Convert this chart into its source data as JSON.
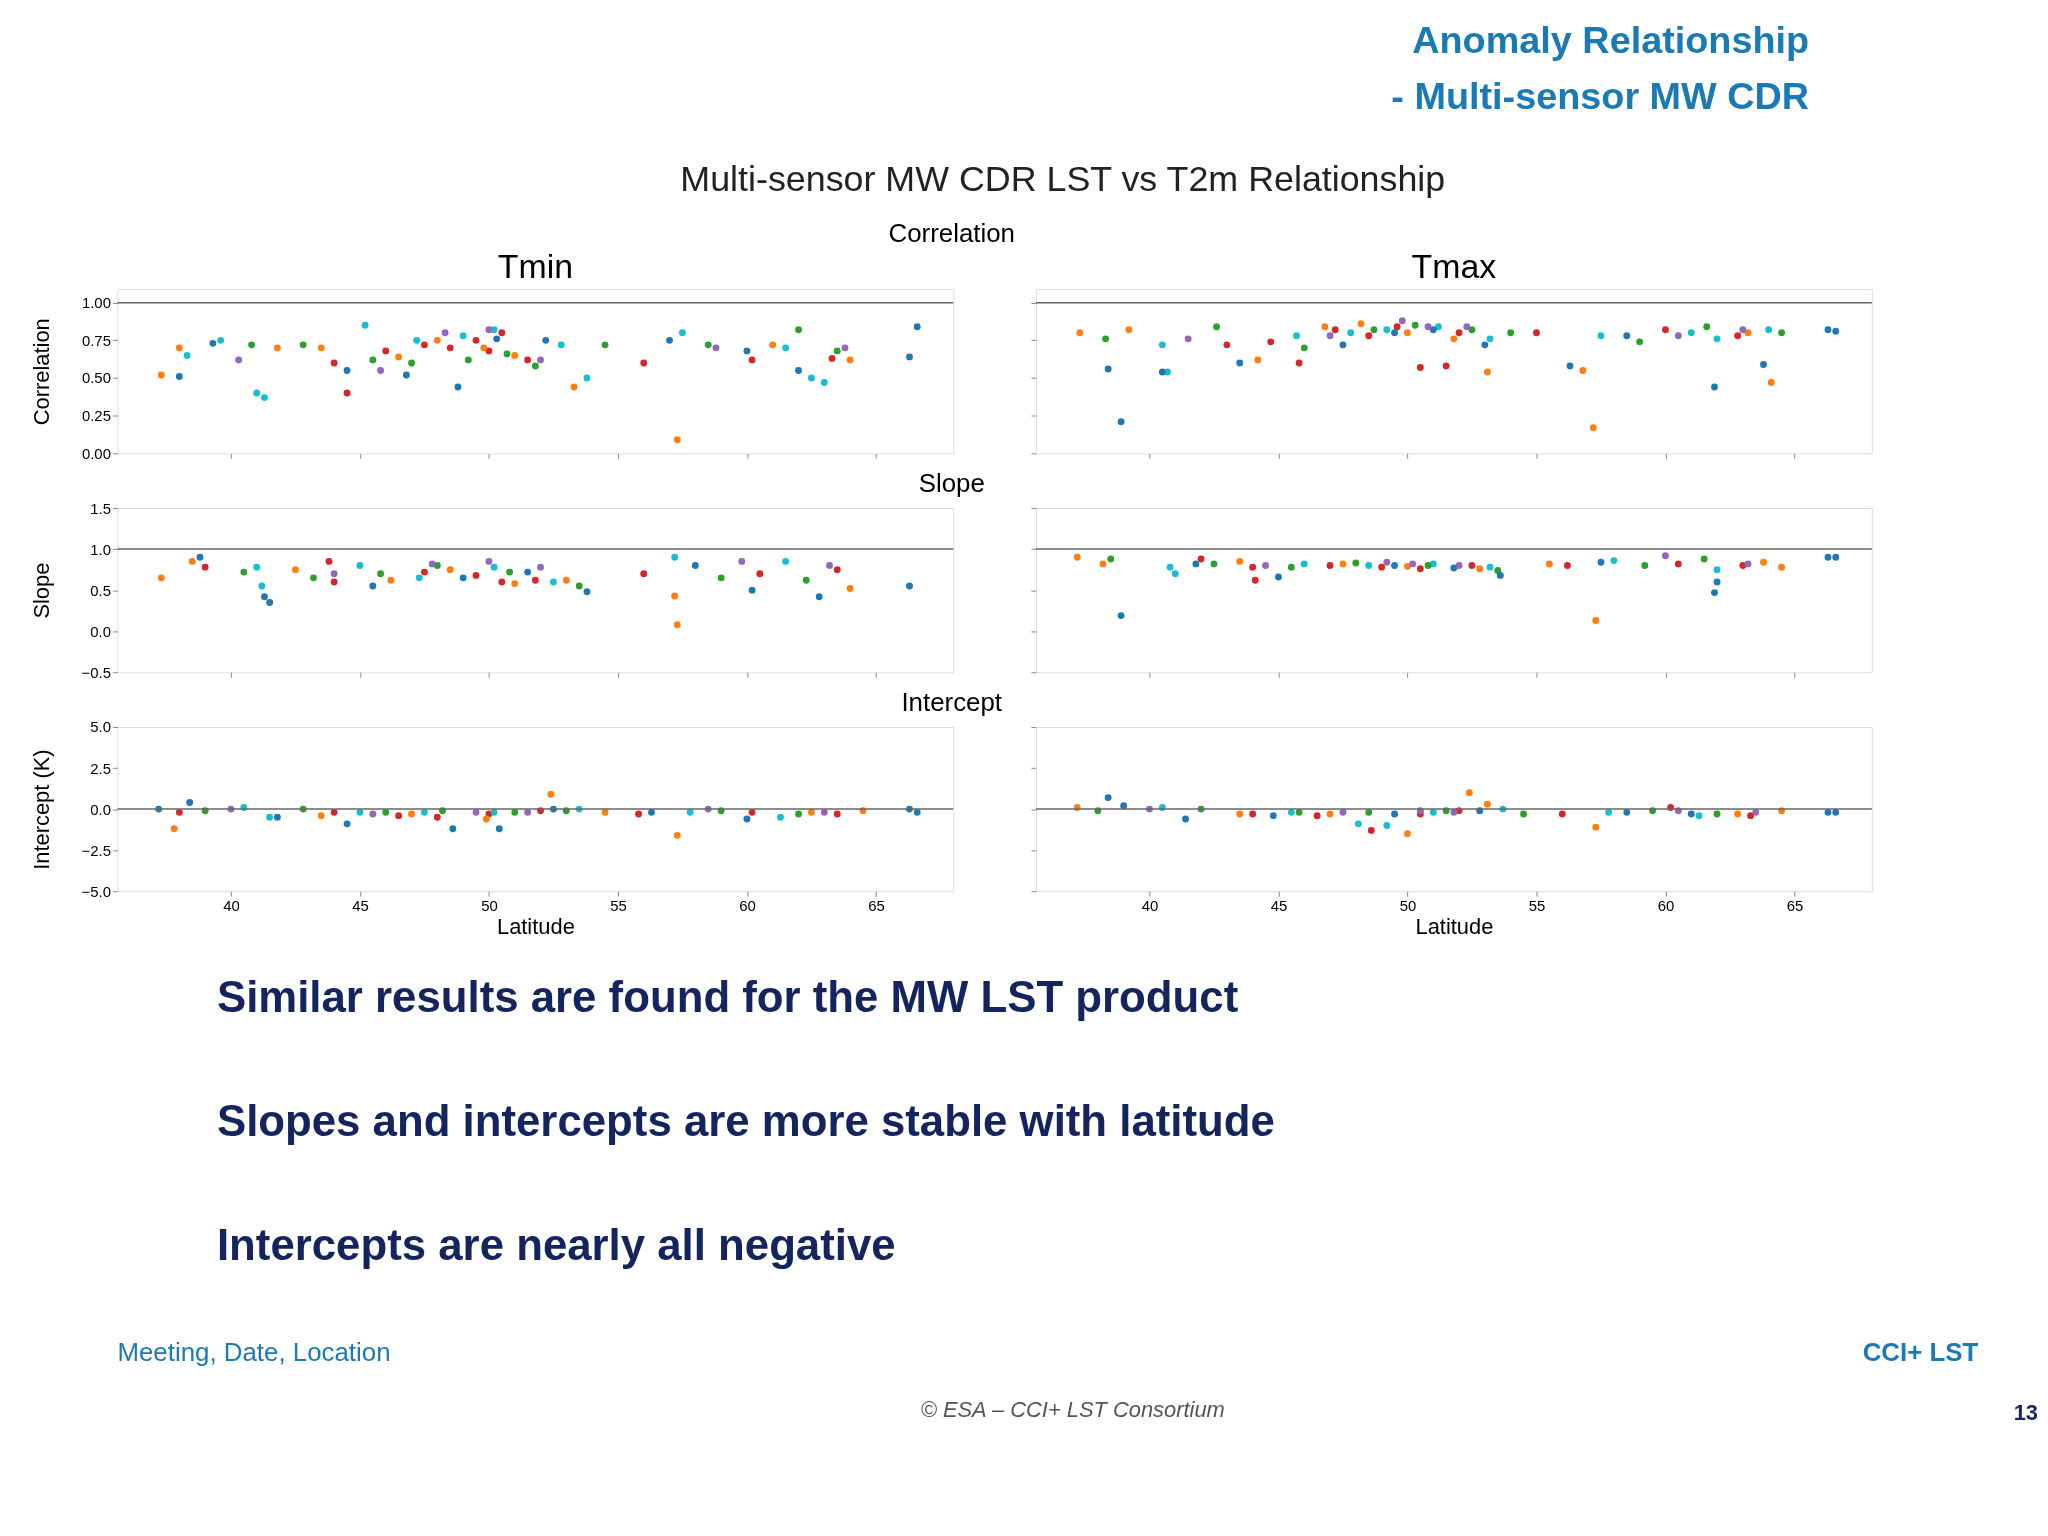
{
  "chart_data": [
    {
      "type": "other",
      "title": "Anomaly Relationship\n- Multi-sensor MW CDR",
      "subtitle": "Multi-sensor MW CDR LST vs T2m Relationship"
    },
    {
      "type": "scatter",
      "title": "Tmin",
      "annotations": [
        "Correlation"
      ],
      "ylabel": "Correlation",
      "marker": "circle",
      "grid": false,
      "tick_labels": "y",
      "xlim": [
        35.6,
        68.0
      ],
      "xticks": [
        40,
        45,
        50,
        55,
        60,
        65
      ],
      "ylim": [
        0,
        1.09
      ],
      "yticks": [
        {
          "value": 0,
          "label": "0.00"
        },
        {
          "value": 0.25,
          "label": "0.25"
        },
        {
          "value": 0.5,
          "label": "0.50"
        },
        {
          "value": 0.75,
          "label": "0.75"
        },
        {
          "value": 1,
          "label": "1.00"
        }
      ],
      "ref_lines": [
        {
          "axis": "y",
          "value": 1
        }
      ],
      "series": [
        {
          "color": "#d62728",
          "x": [
            44.0,
            44.5,
            46.0,
            47.5,
            48.5,
            49.5,
            50.0,
            50.5,
            51.5,
            56.0,
            60.2,
            63.3
          ],
          "values": [
            0.6,
            0.4,
            0.68,
            0.72,
            0.7,
            0.75,
            0.68,
            0.8,
            0.62,
            0.6,
            0.62,
            0.63
          ]
        },
        {
          "color": "#17becf",
          "x": [
            38.3,
            39.6,
            41.0,
            41.3,
            45.2,
            47.2,
            49.0,
            50.2,
            52.8,
            53.8,
            57.5,
            61.5,
            62.5,
            63.0
          ],
          "values": [
            0.65,
            0.75,
            0.4,
            0.37,
            0.85,
            0.75,
            0.78,
            0.82,
            0.72,
            0.5,
            0.8,
            0.7,
            0.5,
            0.47
          ]
        },
        {
          "color": "#ff7f0e",
          "x": [
            37.3,
            38.0,
            41.8,
            43.5,
            46.5,
            48.0,
            49.8,
            51.0,
            53.3,
            57.3,
            61.0,
            64.0
          ],
          "values": [
            0.52,
            0.7,
            0.7,
            0.7,
            0.64,
            0.75,
            0.7,
            0.65,
            0.44,
            0.09,
            0.72,
            0.62
          ]
        },
        {
          "color": "#2ca02c",
          "x": [
            40.8,
            42.8,
            45.5,
            47.0,
            49.2,
            50.7,
            51.8,
            54.5,
            58.5,
            62.0,
            63.5
          ],
          "values": [
            0.72,
            0.72,
            0.62,
            0.6,
            0.62,
            0.66,
            0.58,
            0.72,
            0.72,
            0.82,
            0.68
          ]
        },
        {
          "color": "#1f77b4",
          "x": [
            38.0,
            39.3,
            44.5,
            46.8,
            48.8,
            50.3,
            52.2,
            57.0,
            60.0,
            62.0,
            66.3,
            66.6
          ],
          "values": [
            0.51,
            0.73,
            0.55,
            0.52,
            0.44,
            0.76,
            0.75,
            0.75,
            0.68,
            0.55,
            0.64,
            0.84
          ]
        },
        {
          "color": "#9467bd",
          "x": [
            40.3,
            45.8,
            48.3,
            50.0,
            52.0,
            58.8,
            63.8
          ],
          "values": [
            0.62,
            0.55,
            0.8,
            0.82,
            0.62,
            0.7,
            0.7
          ]
        }
      ]
    },
    {
      "type": "scatter",
      "title": "Tmax",
      "marker": "circle",
      "grid": false,
      "tick_labels": false,
      "xlim": [
        35.6,
        68.0
      ],
      "xticks": [
        40,
        45,
        50,
        55,
        60,
        65
      ],
      "ylim": [
        0,
        1.09
      ],
      "yticks": [
        {
          "value": 0,
          "label": null
        },
        {
          "value": 0.25,
          "label": null
        },
        {
          "value": 0.5,
          "label": null
        },
        {
          "value": 0.75,
          "label": null
        },
        {
          "value": 1,
          "label": null
        }
      ],
      "ref_lines": [
        {
          "axis": "y",
          "value": 1
        }
      ],
      "series": [
        {
          "color": "#d62728",
          "x": [
            43.0,
            44.7,
            45.8,
            47.2,
            48.5,
            49.6,
            50.5,
            51.5,
            52.0,
            55.0,
            60.0,
            62.8
          ],
          "values": [
            0.72,
            0.74,
            0.6,
            0.82,
            0.78,
            0.84,
            0.57,
            0.58,
            0.8,
            0.8,
            0.82,
            0.78
          ]
        },
        {
          "color": "#17becf",
          "x": [
            40.5,
            40.7,
            45.7,
            47.8,
            49.2,
            51.2,
            53.2,
            57.5,
            61.0,
            62.0,
            64.0
          ],
          "values": [
            0.72,
            0.54,
            0.78,
            0.8,
            0.82,
            0.84,
            0.76,
            0.78,
            0.8,
            0.76,
            0.82
          ]
        },
        {
          "color": "#ff7f0e",
          "x": [
            37.3,
            39.2,
            44.2,
            46.8,
            48.2,
            50.0,
            51.8,
            53.1,
            57.2,
            56.8,
            63.2,
            64.1
          ],
          "values": [
            0.8,
            0.82,
            0.62,
            0.84,
            0.86,
            0.8,
            0.76,
            0.54,
            0.17,
            0.55,
            0.8,
            0.47
          ]
        },
        {
          "color": "#2ca02c",
          "x": [
            38.3,
            42.6,
            46.0,
            48.7,
            50.3,
            52.5,
            54.0,
            59.0,
            61.6,
            64.5
          ],
          "values": [
            0.76,
            0.84,
            0.7,
            0.82,
            0.85,
            0.82,
            0.8,
            0.74,
            0.84,
            0.8
          ]
        },
        {
          "color": "#1f77b4",
          "x": [
            38.4,
            38.9,
            40.5,
            43.5,
            47.5,
            49.5,
            51.0,
            53.0,
            56.3,
            58.5,
            61.9,
            63.8,
            66.3,
            66.6
          ],
          "values": [
            0.56,
            0.21,
            0.54,
            0.6,
            0.72,
            0.8,
            0.82,
            0.72,
            0.58,
            0.78,
            0.44,
            0.59,
            0.82,
            0.81
          ]
        },
        {
          "color": "#9467bd",
          "x": [
            41.5,
            47.0,
            49.8,
            50.8,
            52.3,
            60.5,
            63.0
          ],
          "values": [
            0.76,
            0.78,
            0.88,
            0.84,
            0.84,
            0.78,
            0.82
          ]
        }
      ]
    },
    {
      "type": "scatter",
      "annotations": [
        "Slope"
      ],
      "ylabel": "Slope",
      "marker": "circle",
      "grid": false,
      "tick_labels": "y",
      "xlim": [
        35.6,
        68.0
      ],
      "xticks": [
        40,
        45,
        50,
        55,
        60,
        65
      ],
      "ylim": [
        -0.5,
        1.5
      ],
      "yticks": [
        {
          "value": -0.5,
          "label": "−0.5"
        },
        {
          "value": 0,
          "label": "0.0"
        },
        {
          "value": 0.5,
          "label": "0.5"
        },
        {
          "value": 1,
          "label": "1.0"
        },
        {
          "value": 1.5,
          "label": "1.5"
        }
      ],
      "ref_lines": [
        {
          "axis": "y",
          "value": 1
        }
      ],
      "series": [
        {
          "color": "#d62728",
          "x": [
            39.0,
            43.8,
            44.0,
            47.5,
            49.5,
            50.5,
            51.8,
            56.0,
            60.5,
            63.5
          ],
          "values": [
            0.78,
            0.85,
            0.6,
            0.72,
            0.68,
            0.6,
            0.62,
            0.7,
            0.7,
            0.75
          ]
        },
        {
          "color": "#17becf",
          "x": [
            41.0,
            41.2,
            45.0,
            47.3,
            50.2,
            52.5,
            57.2,
            61.5
          ],
          "values": [
            0.78,
            0.55,
            0.8,
            0.65,
            0.78,
            0.6,
            0.9,
            0.85
          ]
        },
        {
          "color": "#ff7f0e",
          "x": [
            37.3,
            38.5,
            42.5,
            46.2,
            48.5,
            51.0,
            53.0,
            57.2,
            57.3,
            64.0
          ],
          "values": [
            0.65,
            0.85,
            0.75,
            0.62,
            0.75,
            0.58,
            0.62,
            0.43,
            0.08,
            0.52
          ]
        },
        {
          "color": "#2ca02c",
          "x": [
            40.5,
            43.2,
            45.8,
            48.0,
            50.8,
            53.5,
            59.0,
            62.3
          ],
          "values": [
            0.72,
            0.65,
            0.7,
            0.8,
            0.72,
            0.55,
            0.65,
            0.62
          ]
        },
        {
          "color": "#1f77b4",
          "x": [
            38.8,
            41.3,
            41.5,
            45.5,
            49.0,
            51.5,
            53.8,
            58.0,
            60.2,
            62.8,
            66.3
          ],
          "values": [
            0.9,
            0.42,
            0.35,
            0.55,
            0.65,
            0.72,
            0.48,
            0.8,
            0.5,
            0.42,
            0.55
          ]
        },
        {
          "color": "#9467bd",
          "x": [
            44.0,
            47.8,
            50.0,
            52.0,
            59.8,
            63.2
          ],
          "values": [
            0.7,
            0.82,
            0.85,
            0.78,
            0.85,
            0.8
          ]
        }
      ]
    },
    {
      "type": "scatter",
      "marker": "circle",
      "grid": false,
      "tick_labels": false,
      "xlim": [
        35.6,
        68.0
      ],
      "xticks": [
        40,
        45,
        50,
        55,
        60,
        65
      ],
      "ylim": [
        -0.5,
        1.5
      ],
      "yticks": [
        {
          "value": -0.5,
          "label": null
        },
        {
          "value": 0,
          "label": null
        },
        {
          "value": 0.5,
          "label": null
        },
        {
          "value": 1,
          "label": null
        },
        {
          "value": 1.5,
          "label": null
        }
      ],
      "ref_lines": [
        {
          "axis": "y",
          "value": 1
        }
      ],
      "series": [
        {
          "color": "#d62728",
          "x": [
            42.0,
            44.0,
            44.1,
            47.0,
            49.0,
            50.5,
            52.5,
            56.2,
            60.5,
            63.0
          ],
          "values": [
            0.88,
            0.78,
            0.62,
            0.8,
            0.78,
            0.76,
            0.8,
            0.8,
            0.82,
            0.8
          ]
        },
        {
          "color": "#17becf",
          "x": [
            40.8,
            41.0,
            46.0,
            48.5,
            51.0,
            53.2,
            58.0,
            62.0
          ],
          "values": [
            0.78,
            0.7,
            0.82,
            0.8,
            0.82,
            0.78,
            0.86,
            0.75
          ]
        },
        {
          "color": "#ff7f0e",
          "x": [
            37.2,
            38.2,
            43.5,
            47.5,
            50.0,
            52.8,
            55.5,
            57.3,
            63.8,
            64.5
          ],
          "values": [
            0.9,
            0.82,
            0.85,
            0.82,
            0.79,
            0.76,
            0.82,
            0.13,
            0.84,
            0.78
          ]
        },
        {
          "color": "#2ca02c",
          "x": [
            38.5,
            42.5,
            45.5,
            48.0,
            50.8,
            53.5,
            59.2,
            61.5
          ],
          "values": [
            0.88,
            0.82,
            0.78,
            0.83,
            0.8,
            0.74,
            0.8,
            0.88
          ]
        },
        {
          "color": "#1f77b4",
          "x": [
            38.9,
            41.8,
            45.0,
            49.5,
            51.8,
            53.6,
            57.5,
            61.9,
            62.0,
            66.3,
            66.6
          ],
          "values": [
            0.19,
            0.82,
            0.66,
            0.8,
            0.77,
            0.68,
            0.84,
            0.47,
            0.6,
            0.9,
            0.9
          ]
        },
        {
          "color": "#9467bd",
          "x": [
            44.5,
            49.2,
            50.2,
            52.0,
            60.0,
            63.2
          ],
          "values": [
            0.8,
            0.84,
            0.82,
            0.8,
            0.92,
            0.82
          ]
        }
      ]
    },
    {
      "type": "scatter",
      "annotations": [
        "Intercept"
      ],
      "ylabel": "Intercept (K)",
      "xlabel": "Latitude",
      "marker": "circle",
      "grid": false,
      "xlim": [
        35.6,
        68.0
      ],
      "xticks": [
        40,
        45,
        50,
        55,
        60,
        65
      ],
      "ylim": [
        -5,
        5
      ],
      "yticks": [
        {
          "value": -5,
          "label": "−5.0"
        },
        {
          "value": -2.5,
          "label": "−2.5"
        },
        {
          "value": 0,
          "label": "0.0"
        },
        {
          "value": 2.5,
          "label": "2.5"
        },
        {
          "value": 5,
          "label": "5.0"
        }
      ],
      "ref_lines": [
        {
          "axis": "y",
          "value": 0
        }
      ],
      "series": [
        {
          "color": "#d62728",
          "x": [
            38.0,
            44.0,
            46.5,
            48.0,
            50.0,
            52.0,
            55.8,
            60.2,
            63.5
          ],
          "values": [
            -0.2,
            -0.2,
            -0.4,
            -0.5,
            -0.3,
            -0.1,
            -0.3,
            -0.2,
            -0.3
          ]
        },
        {
          "color": "#17becf",
          "x": [
            40.5,
            41.5,
            45.0,
            47.5,
            50.2,
            53.5,
            57.8,
            61.3
          ],
          "values": [
            0.1,
            -0.5,
            -0.2,
            -0.2,
            -0.2,
            0.0,
            -0.2,
            -0.5
          ]
        },
        {
          "color": "#ff7f0e",
          "x": [
            37.8,
            43.5,
            47.0,
            49.9,
            52.4,
            54.5,
            57.3,
            62.5,
            64.5
          ],
          "values": [
            -1.2,
            -0.4,
            -0.3,
            -0.6,
            0.9,
            -0.2,
            -1.6,
            -0.2,
            -0.1
          ]
        },
        {
          "color": "#2ca02c",
          "x": [
            39.0,
            42.8,
            46.0,
            48.2,
            51.0,
            53.0,
            59.0,
            62.0
          ],
          "values": [
            -0.1,
            0.0,
            -0.2,
            -0.1,
            -0.2,
            -0.1,
            -0.1,
            -0.3
          ]
        },
        {
          "color": "#1f77b4",
          "x": [
            37.2,
            38.4,
            41.8,
            44.5,
            48.6,
            50.4,
            52.5,
            56.3,
            60.0,
            66.3,
            66.6
          ],
          "values": [
            0.0,
            0.4,
            -0.5,
            -0.9,
            -1.2,
            -1.2,
            0.0,
            -0.2,
            -0.6,
            0.0,
            -0.2
          ]
        },
        {
          "color": "#9467bd",
          "x": [
            40.0,
            45.5,
            49.5,
            51.5,
            58.5,
            63.0
          ],
          "values": [
            0.0,
            -0.3,
            -0.2,
            -0.2,
            0.0,
            -0.2
          ]
        }
      ]
    },
    {
      "type": "scatter",
      "xlabel": "Latitude",
      "marker": "circle",
      "grid": false,
      "tick_labels": "x",
      "xlim": [
        35.6,
        68.0
      ],
      "xticks": [
        40,
        45,
        50,
        55,
        60,
        65
      ],
      "ylim": [
        -5,
        5
      ],
      "yticks": [
        {
          "value": -5,
          "label": null
        },
        {
          "value": -2.5,
          "label": null
        },
        {
          "value": 0,
          "label": null
        },
        {
          "value": 2.5,
          "label": null
        },
        {
          "value": 5,
          "label": null
        }
      ],
      "ref_lines": [
        {
          "axis": "y",
          "value": 0
        }
      ],
      "series": [
        {
          "color": "#d62728",
          "x": [
            44.0,
            46.5,
            48.6,
            50.5,
            52.0,
            56.0,
            60.2,
            63.3
          ],
          "values": [
            -0.3,
            -0.4,
            -1.3,
            -0.3,
            -0.1,
            -0.3,
            0.1,
            -0.4
          ]
        },
        {
          "color": "#17becf",
          "x": [
            40.5,
            45.5,
            48.1,
            49.2,
            51.0,
            53.7,
            57.8,
            61.3
          ],
          "values": [
            0.1,
            -0.2,
            -0.9,
            -1.0,
            -0.2,
            0.0,
            -0.2,
            -0.4
          ]
        },
        {
          "color": "#ff7f0e",
          "x": [
            37.2,
            43.5,
            47.0,
            50.0,
            52.4,
            53.1,
            57.3,
            62.8,
            64.5
          ],
          "values": [
            0.1,
            -0.3,
            -0.3,
            -1.5,
            1.0,
            0.3,
            -1.1,
            -0.3,
            -0.1
          ]
        },
        {
          "color": "#2ca02c",
          "x": [
            38.0,
            42.0,
            45.8,
            48.5,
            51.5,
            54.5,
            59.5,
            62.0
          ],
          "values": [
            -0.1,
            0.0,
            -0.2,
            -0.2,
            -0.1,
            -0.3,
            -0.1,
            -0.3
          ]
        },
        {
          "color": "#1f77b4",
          "x": [
            38.4,
            39.0,
            41.4,
            44.8,
            49.5,
            52.8,
            58.5,
            61.0,
            66.3,
            66.6
          ],
          "values": [
            0.7,
            0.2,
            -0.6,
            -0.4,
            -0.3,
            -0.1,
            -0.2,
            -0.3,
            -0.2,
            -0.2
          ]
        },
        {
          "color": "#9467bd",
          "x": [
            40.0,
            47.5,
            50.5,
            51.8,
            60.5,
            63.5
          ],
          "values": [
            0.0,
            -0.2,
            -0.1,
            -0.2,
            -0.1,
            -0.2
          ]
        }
      ]
    },
    {
      "type": "other",
      "annotations": [
        "Similar results are found for the MW LST product",
        "Slopes and intercepts are more stable with latitude",
        "Intercepts are nearly all negative",
        "Meeting, Date, Location",
        "CCI+ LST",
        "© ESA – CCI+ LST Consortium",
        "13"
      ]
    }
  ]
}
